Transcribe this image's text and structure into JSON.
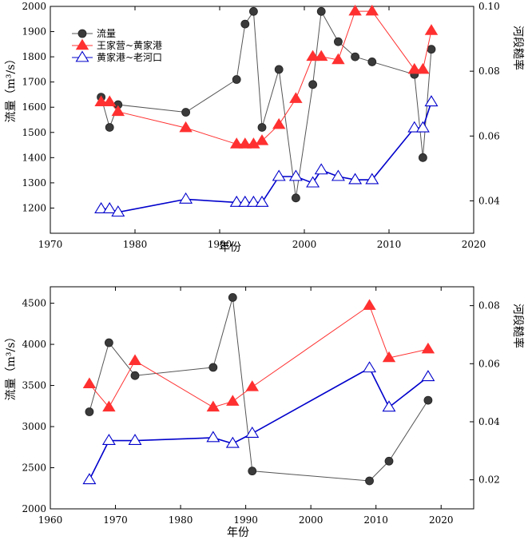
{
  "chart_data": [
    {
      "type": "line",
      "title": "",
      "xlabel": "年份",
      "ylabel": "流量（m³/s）",
      "y2label": "河段糙率",
      "xlim": [
        1970,
        2020
      ],
      "ylim": [
        1100,
        2000
      ],
      "y2lim": [
        0.03,
        0.1
      ],
      "xticks": [
        1970,
        1980,
        1990,
        2000,
        2010,
        2020
      ],
      "yticks": [
        1200,
        1300,
        1400,
        1500,
        1600,
        1700,
        1800,
        1900,
        2000
      ],
      "y2ticks": [
        0.04,
        0.06,
        0.08,
        0.1
      ],
      "y2ticklabels": [
        "0.04",
        "0.06",
        "0.08",
        "0.10"
      ],
      "legend_position": "top-left",
      "series": [
        {
          "name": "流量",
          "axis": "left",
          "color": "#555555",
          "marker": "circle",
          "x": [
            1976,
            1977,
            1978,
            1986,
            1992,
            1993,
            1994,
            1995,
            1997,
            1999,
            2001,
            2002,
            2004,
            2006,
            2008,
            2013,
            2014,
            2015
          ],
          "y": [
            1640,
            1520,
            1610,
            1580,
            1710,
            1930,
            1980,
            1520,
            1750,
            1240,
            1690,
            1980,
            1860,
            1800,
            1780,
            1730,
            1400,
            1830
          ]
        },
        {
          "name": "王家营~黄家港",
          "axis": "right",
          "color": "#ff3030",
          "marker": "triangle-filled",
          "x": [
            1976,
            1977,
            1978,
            1986,
            1992,
            1993,
            1994,
            1995,
            1997,
            1999,
            2001,
            2002,
            2004,
            2006,
            2008,
            2013,
            2014,
            2015
          ],
          "y": [
            0.0705,
            0.0705,
            0.0675,
            0.0625,
            0.0575,
            0.0575,
            0.0575,
            0.0585,
            0.0635,
            0.0715,
            0.0845,
            0.0845,
            0.0835,
            0.0985,
            0.0985,
            0.0805,
            0.0805,
            0.0925
          ]
        },
        {
          "name": "黄家港~老河口",
          "axis": "right",
          "color": "#0000cc",
          "marker": "triangle-open",
          "x": [
            1976,
            1977,
            1978,
            1986,
            1992,
            1993,
            1994,
            1995,
            1997,
            1999,
            2001,
            2002,
            2004,
            2006,
            2008,
            2013,
            2014,
            2015
          ],
          "y": [
            0.0375,
            0.0375,
            0.0365,
            0.0405,
            0.0395,
            0.0395,
            0.0395,
            0.0395,
            0.0475,
            0.0475,
            0.0455,
            0.0495,
            0.0475,
            0.0465,
            0.0465,
            0.0625,
            0.0625,
            0.0705
          ]
        }
      ]
    },
    {
      "type": "line",
      "title": "",
      "xlabel": "年份",
      "ylabel": "流量（m³/s）",
      "y2label": "河段糙率",
      "xlim": [
        1960,
        2025
      ],
      "ylim": [
        2000,
        4700
      ],
      "y2lim": [
        0.01,
        0.0865
      ],
      "xticks": [
        1960,
        1970,
        1980,
        1990,
        2000,
        2010,
        2020
      ],
      "yticks": [
        2000,
        2500,
        3000,
        3500,
        4000,
        4500
      ],
      "y2ticks": [
        0.02,
        0.04,
        0.06,
        0.08
      ],
      "y2ticklabels": [
        "0.02",
        "0.04",
        "0.06",
        "0.08"
      ],
      "series": [
        {
          "name": "流量",
          "axis": "left",
          "color": "#555555",
          "marker": "circle",
          "x": [
            1966,
            1969,
            1973,
            1985,
            1988,
            1991,
            2009,
            2012,
            2018
          ],
          "y": [
            3180,
            4020,
            3620,
            3720,
            4570,
            2460,
            2340,
            2580,
            3320
          ]
        },
        {
          "name": "王家营~黄家港",
          "axis": "right",
          "color": "#ff3030",
          "marker": "triangle-filled",
          "x": [
            1966,
            1969,
            1973,
            1985,
            1988,
            1991,
            2009,
            2012,
            2018
          ],
          "y": [
            0.053,
            0.045,
            0.061,
            0.045,
            0.047,
            0.052,
            0.08,
            0.062,
            0.065
          ]
        },
        {
          "name": "黄家港~老河口",
          "axis": "right",
          "color": "#0000cc",
          "marker": "triangle-open",
          "x": [
            1966,
            1969,
            1973,
            1985,
            1988,
            1991,
            2009,
            2012,
            2018
          ],
          "y": [
            0.02,
            0.0335,
            0.0335,
            0.0345,
            0.0325,
            0.036,
            0.0585,
            0.045,
            0.0555
          ]
        }
      ]
    }
  ]
}
